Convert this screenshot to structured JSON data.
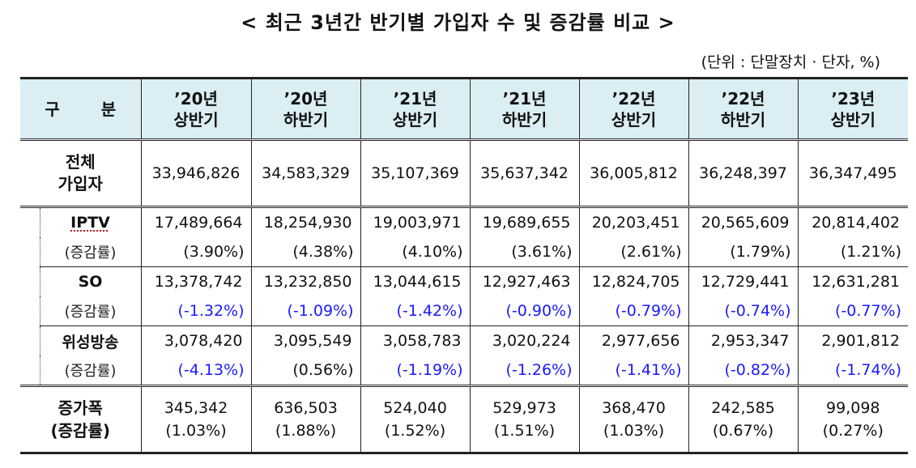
{
  "title": "< 최근 3년간 반기별 가입자 수 및 증감률 비교 >",
  "unit": "(단위 : 단말장치 · 단자, %)",
  "header": {
    "gubun": "구 분",
    "periods": [
      {
        "year": "’20년",
        "half": "상반기"
      },
      {
        "year": "’20년",
        "half": "하반기"
      },
      {
        "year": "’21년",
        "half": "상반기"
      },
      {
        "year": "’21년",
        "half": "하반기"
      },
      {
        "year": "’22년",
        "half": "상반기"
      },
      {
        "year": "’22년",
        "half": "하반기"
      },
      {
        "year": "’23년",
        "half": "상반기"
      }
    ]
  },
  "total": {
    "label_line1": "전체",
    "label_line2": "가입자",
    "values": [
      "33,946,826",
      "34,583,329",
      "35,107,369",
      "35,637,342",
      "36,005,812",
      "36,248,397",
      "36,347,495"
    ]
  },
  "groups": [
    {
      "name": "IPTV",
      "rate_label": "(증감률)",
      "values": [
        "17,489,664",
        "18,254,930",
        "19,003,971",
        "19,689,655",
        "20,203,451",
        "20,565,609",
        "20,814,402"
      ],
      "rates": [
        "(3.90%)",
        "(4.38%)",
        "(4.10%)",
        "(3.61%)",
        "(2.61%)",
        "(1.79%)",
        "(1.21%)"
      ]
    },
    {
      "name": "SO",
      "rate_label": "(증감률)",
      "values": [
        "13,378,742",
        "13,232,850",
        "13,044,615",
        "12,927,463",
        "12,824,705",
        "12,729,441",
        "12,631,281"
      ],
      "rates": [
        "(-1.32%)",
        "(-1.09%)",
        "(-1.42%)",
        "(-0.90%)",
        "(-0.79%)",
        "(-0.74%)",
        "(-0.77%)"
      ]
    },
    {
      "name": "위성방송",
      "rate_label": "(증감률)",
      "values": [
        "3,078,420",
        "3,095,549",
        "3,058,783",
        "3,020,224",
        "2,977,656",
        "2,953,347",
        "2,901,812"
      ],
      "rates": [
        "(-4.13%)",
        "(0.56%)",
        "(-1.19%)",
        "(-1.26%)",
        "(-1.41%)",
        "(-0.82%)",
        "(-1.74%)"
      ]
    }
  ],
  "increase": {
    "label_line1": "증가폭",
    "label_line2": "(증감률)",
    "values": [
      "345,342",
      "636,503",
      "524,040",
      "529,973",
      "368,470",
      "242,585",
      "99,098"
    ],
    "rates": [
      "(1.03%)",
      "(1.88%)",
      "(1.52%)",
      "(1.51%)",
      "(1.03%)",
      "(0.67%)",
      "(0.27%)"
    ]
  },
  "colors": {
    "header_bg": "#daeef3",
    "negative_rate": "#1a1aff"
  }
}
